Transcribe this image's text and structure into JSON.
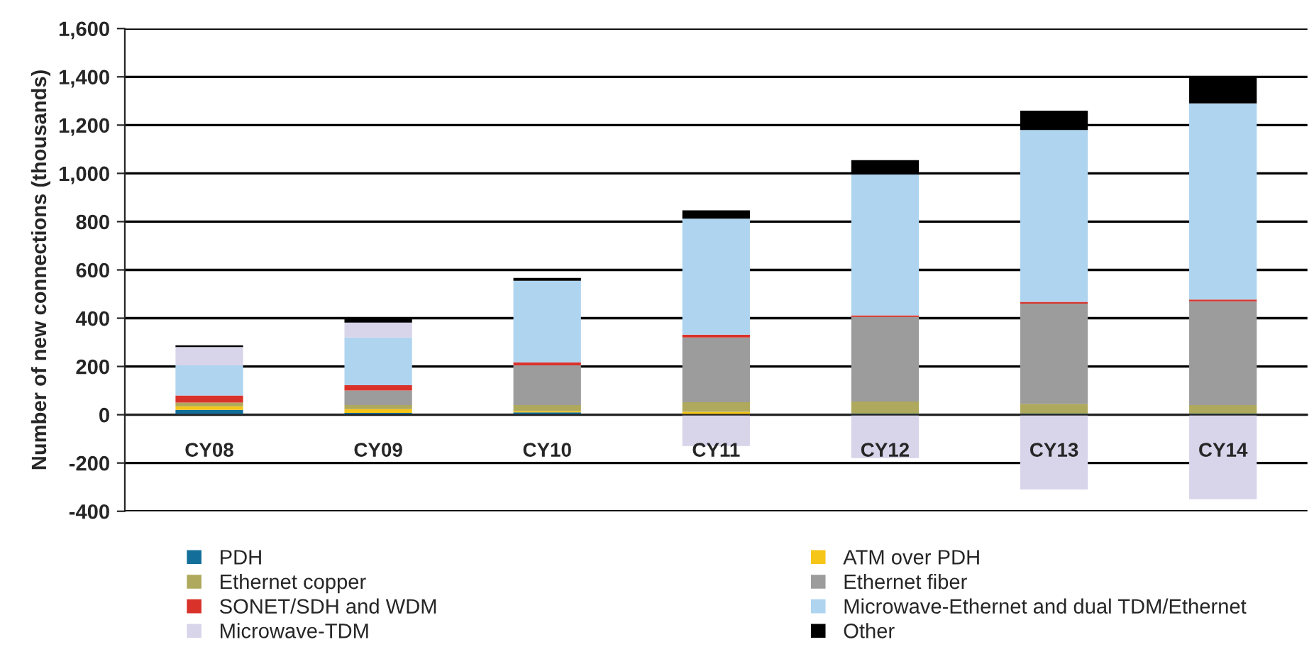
{
  "chart_data": {
    "type": "bar",
    "stacked": true,
    "ylabel": "Number of new connections (thousands)",
    "categories": [
      "CY08",
      "CY09",
      "CY10",
      "CY11",
      "CY12",
      "CY13",
      "CY14"
    ],
    "series": [
      {
        "name": "PDH",
        "color": "#136f99",
        "values": [
          20,
          8,
          10,
          2,
          5,
          5,
          5
        ]
      },
      {
        "name": "ATM over PDH",
        "color": "#f5c518",
        "values": [
          15,
          15,
          5,
          10,
          0,
          0,
          0
        ]
      },
      {
        "name": "Ethernet copper",
        "color": "#aea95c",
        "values": [
          15,
          17,
          25,
          40,
          50,
          40,
          35
        ]
      },
      {
        "name": "Ethernet fiber",
        "color": "#9c9c9c",
        "values": [
          0,
          60,
          165,
          268,
          350,
          415,
          430
        ]
      },
      {
        "name": "SONET/SDH and WDM",
        "color": "#d9322a",
        "values": [
          30,
          22,
          12,
          12,
          7,
          8,
          7
        ]
      },
      {
        "name": "Microwave-Ethernet and dual TDM/Ethernet",
        "color": "#aed4f0",
        "values": [
          125,
          198,
          338,
          480,
          583,
          712,
          813
        ]
      },
      {
        "name": "Microwave-TDM",
        "color": "#d8d4ea",
        "values": [
          75,
          62,
          null,
          -130,
          -180,
          -310,
          -350
        ]
      },
      {
        "name": "Other",
        "color": "#000000",
        "values": [
          8,
          15,
          12,
          35,
          60,
          80,
          110
        ]
      }
    ],
    "ylim": [
      -400,
      1600
    ],
    "yticks": [
      {
        "value": -400,
        "label": "-400"
      },
      {
        "value": -200,
        "label": "-200"
      },
      0,
      200,
      400,
      600,
      800,
      {
        "value": 1000,
        "label": "1,000"
      },
      {
        "value": 1200,
        "label": "1,200"
      },
      {
        "value": 1400,
        "label": "1,400"
      },
      {
        "value": 1600,
        "label": "1,600"
      }
    ],
    "grid": "y",
    "legend": "bottom"
  }
}
